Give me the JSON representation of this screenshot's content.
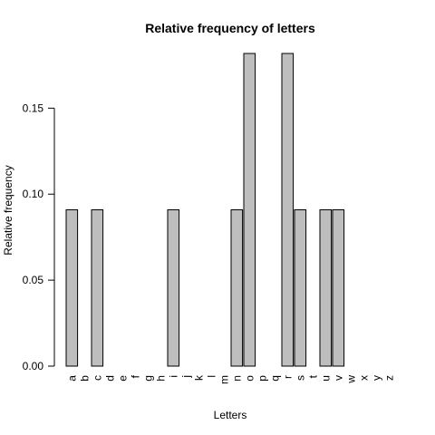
{
  "chart_data": {
    "type": "bar",
    "title": "Relative frequency of letters",
    "xlabel": "Letters",
    "ylabel": "Relative frequency",
    "categories": [
      "a",
      "b",
      "c",
      "d",
      "e",
      "f",
      "g",
      "h",
      "i",
      "j",
      "k",
      "l",
      "m",
      "n",
      "o",
      "p",
      "q",
      "r",
      "s",
      "t",
      "u",
      "v",
      "w",
      "x",
      "y",
      "z"
    ],
    "values": [
      0.0909,
      0,
      0.0909,
      0,
      0,
      0,
      0,
      0,
      0.0909,
      0,
      0,
      0,
      0,
      0.0909,
      0.1818,
      0,
      0,
      0.1818,
      0.0909,
      0,
      0.0909,
      0.0909,
      0,
      0,
      0,
      0
    ],
    "yticks": [
      0.0,
      0.05,
      0.1,
      0.15
    ],
    "ytick_labels": [
      "0.00",
      "0.05",
      "0.10",
      "0.15"
    ],
    "ylim": [
      0,
      0.1818
    ],
    "grid": false,
    "bar_color": "#bebebe",
    "bar_border_color": "#000000"
  }
}
